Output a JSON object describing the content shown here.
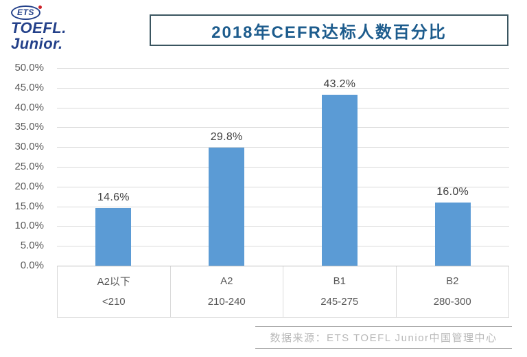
{
  "logo": {
    "ets": "ETS",
    "toefl": "TOEFL.",
    "junior": "Junior.",
    "navy": "#24418a",
    "red": "#cc2229"
  },
  "title": {
    "text": "2018年CEFR达标人数百分比"
  },
  "chart_data": {
    "type": "bar",
    "title": "2018年CEFR达标人数百分比",
    "categories": [
      "A2以下",
      "A2",
      "B1",
      "B2"
    ],
    "score_ranges": [
      "<210",
      "210-240",
      "245-275",
      "280-300"
    ],
    "values": [
      14.6,
      29.8,
      43.2,
      16.0
    ],
    "value_labels": [
      "14.6%",
      "29.8%",
      "43.2%",
      "16.0%"
    ],
    "xlabel": "",
    "ylabel": "",
    "ylim": [
      0,
      50
    ],
    "ytick_step": 5,
    "ytick_labels": [
      "0.0%",
      "5.0%",
      "10.0%",
      "15.0%",
      "20.0%",
      "25.0%",
      "30.0%",
      "35.0%",
      "40.0%",
      "45.0%",
      "50.0%"
    ],
    "grid": true,
    "legend": false,
    "bar_color": "#5b9bd5",
    "gridline_color": "#d9d9d9",
    "axis_line_color": "#bfbfbf",
    "tick_label_color": "#595959",
    "value_label_color": "#404040"
  },
  "source": {
    "text": "数据来源：ETS TOEFL Junior中国管理中心"
  }
}
